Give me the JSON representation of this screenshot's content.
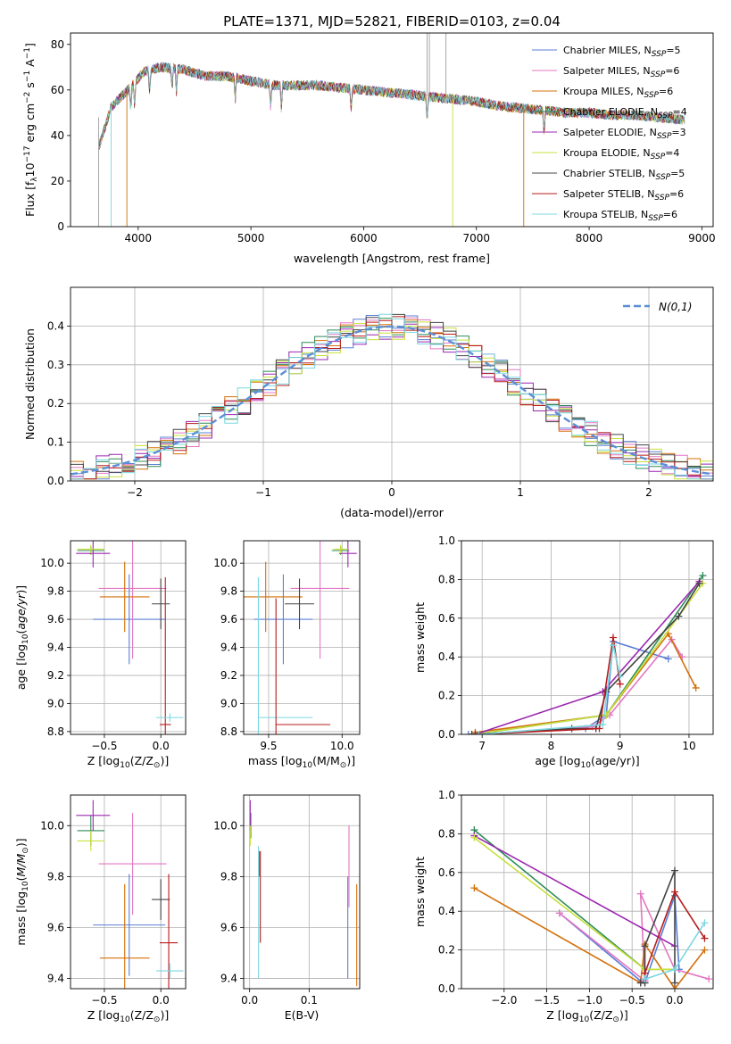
{
  "figure_title": "PLATE=1371, MJD=52821, FIBERID=0103, z=0.04",
  "series_colors": {
    "Chabrier MILES": "#5b7fd6",
    "Salpeter MILES": "#e377c2",
    "Kroupa MILES": "#d4700a",
    "Chabrier ELODIE": "#2e8b57",
    "Salpeter ELODIE": "#9b27b0",
    "Kroupa ELODIE": "#c8e03c",
    "Chabrier STELIB": "#444444",
    "Salpeter STELIB": "#b71c1c",
    "Kroupa STELIB": "#7ad7e0"
  },
  "chart_data": [
    {
      "id": "spectrum",
      "type": "line",
      "title": "PLATE=1371, MJD=52821, FIBERID=0103, z=0.04",
      "xlabel": "wavelength [Angstrom, rest frame]",
      "ylabel_parts": [
        "Flux [f",
        "λ",
        "10",
        "−17",
        " erg cm",
        "−2",
        " s",
        "−1",
        " A",
        "−1",
        "]"
      ],
      "xlim": [
        3400,
        9100
      ],
      "ylim": [
        0,
        85
      ],
      "xticks": [
        4000,
        5000,
        6000,
        7000,
        8000,
        9000
      ],
      "yticks": [
        0,
        20,
        40,
        60,
        80
      ],
      "legend_position": "upper-right",
      "legend": [
        {
          "label": "Chabrier MILES, N",
          "sub": "SSP",
          "val": "=5",
          "series": "Chabrier MILES"
        },
        {
          "label": "Salpeter MILES, N",
          "sub": "SSP",
          "val": "=6",
          "series": "Salpeter MILES"
        },
        {
          "label": "Kroupa MILES, N",
          "sub": "SSP",
          "val": "=6",
          "series": "Kroupa MILES"
        },
        {
          "label": "Chabrier ELODIE, N",
          "sub": "SSP",
          "val": "=4",
          "series": "Chabrier ELODIE"
        },
        {
          "label": "Salpeter ELODIE, N",
          "sub": "SSP",
          "val": "=3",
          "series": "Salpeter ELODIE"
        },
        {
          "label": "Kroupa ELODIE, N",
          "sub": "SSP",
          "val": "=4",
          "series": "Kroupa ELODIE"
        },
        {
          "label": "Chabrier STELIB, N",
          "sub": "SSP",
          "val": "=5",
          "series": "Chabrier STELIB"
        },
        {
          "label": "Salpeter STELIB, N",
          "sub": "SSP",
          "val": "=6",
          "series": "Salpeter STELIB"
        },
        {
          "label": "Kroupa STELIB, N",
          "sub": "SSP",
          "val": "=6",
          "series": "Kroupa STELIB"
        }
      ],
      "continuum": {
        "x": [
          3650,
          3750,
          3850,
          3950,
          4050,
          4200,
          4400,
          4600,
          4800,
          5000,
          5200,
          5400,
          5600,
          5800,
          6000,
          6200,
          6400,
          6600,
          6800,
          7000,
          7200,
          7400,
          7600,
          7800,
          8000,
          8200,
          8400,
          8600,
          8800
        ],
        "y": [
          48,
          52,
          57,
          62,
          68,
          70,
          69,
          66,
          66,
          64,
          62,
          62,
          62,
          61,
          60,
          59,
          58,
          57,
          56,
          55,
          53,
          52,
          51,
          50,
          50,
          49,
          49,
          48,
          47
        ]
      },
      "data_spikes": [
        {
          "x": 6563,
          "y": 85
        },
        {
          "x": 6583,
          "y": 85
        },
        {
          "x": 6730,
          "y": 85
        }
      ]
    },
    {
      "id": "residuals",
      "type": "histogram",
      "xlabel": "(data-model)/error",
      "ylabel": "Normed distribution",
      "xlim": [
        -2.5,
        2.5
      ],
      "ylim": [
        0,
        0.5
      ],
      "xticks": [
        -2,
        -1,
        0,
        1,
        2
      ],
      "yticks": [
        0.0,
        0.1,
        0.2,
        0.3,
        0.4
      ],
      "grid": true,
      "bin_width": 0.1,
      "legend_position": "upper-right",
      "reference_curve": {
        "label": "N(0,1)",
        "mean": 0,
        "sigma": 1
      }
    },
    {
      "id": "age-vs-z",
      "type": "errorbar",
      "xlabel_text": "Z [log",
      "xlabel_sub": "10",
      "xlabel_rest": "(Z/Z",
      "xlabel_sun": "⊙",
      "xlabel_end": ")]",
      "ylabel": "age  [log10(age/yr)]",
      "xlim": [
        -0.8,
        0.22
      ],
      "ylim": [
        8.78,
        10.16
      ],
      "xticks": [
        -0.5,
        0.0
      ],
      "yticks": [
        8.8,
        9.0,
        9.2,
        9.4,
        9.6,
        9.8,
        10.0
      ],
      "grid": true,
      "points": [
        {
          "series": "Chabrier MILES",
          "x": -0.28,
          "xerr": 0.32,
          "y": 9.6,
          "yerr": 0.32
        },
        {
          "series": "Salpeter MILES",
          "x": -0.25,
          "xerr": 0.3,
          "y": 9.82,
          "yerr": 0.5
        },
        {
          "series": "Kroupa MILES",
          "x": -0.32,
          "xerr": 0.22,
          "y": 9.76,
          "yerr": 0.25
        },
        {
          "series": "Chabrier ELODIE",
          "x": -0.62,
          "xerr": 0.12,
          "y": 10.09,
          "yerr": 0.03
        },
        {
          "series": "Salpeter ELODIE",
          "x": -0.6,
          "xerr": 0.15,
          "y": 10.07,
          "yerr": 0.1
        },
        {
          "series": "Kroupa ELODIE",
          "x": -0.62,
          "xerr": 0.12,
          "y": 10.1,
          "yerr": 0.03
        },
        {
          "series": "Chabrier STELIB",
          "x": 0.0,
          "xerr": 0.08,
          "y": 9.71,
          "yerr": 0.18
        },
        {
          "series": "Salpeter STELIB",
          "x": 0.04,
          "xerr": 0.05,
          "y": 8.85,
          "yerr": 1.05
        },
        {
          "series": "Kroupa STELIB",
          "x": 0.08,
          "xerr": 0.12,
          "y": 8.9,
          "yerr": 0.03
        }
      ]
    },
    {
      "id": "age-vs-mass",
      "type": "errorbar",
      "xlabel_text": "mass [log",
      "xlabel_sub": "10",
      "xlabel_rest": "(M/M",
      "xlabel_sun": "⊙",
      "xlabel_end": ")]",
      "xlim": [
        9.33,
        10.12
      ],
      "ylim": [
        8.78,
        10.16
      ],
      "xticks": [
        9.5,
        10.0
      ],
      "yticks": [
        8.8,
        9.0,
        9.2,
        9.4,
        9.6,
        9.8,
        10.0
      ],
      "grid": true,
      "points": [
        {
          "series": "Chabrier MILES",
          "x": 9.6,
          "xerr": 0.2,
          "y": 9.6,
          "yerr": 0.32
        },
        {
          "series": "Salpeter MILES",
          "x": 9.85,
          "xerr": 0.2,
          "y": 9.82,
          "yerr": 0.5
        },
        {
          "series": "Kroupa MILES",
          "x": 9.48,
          "xerr": 0.25,
          "y": 9.76,
          "yerr": 0.25
        },
        {
          "series": "Chabrier ELODIE",
          "x": 9.99,
          "xerr": 0.06,
          "y": 10.09,
          "yerr": 0.03
        },
        {
          "series": "Salpeter ELODIE",
          "x": 10.04,
          "xerr": 0.06,
          "y": 10.07,
          "yerr": 0.1
        },
        {
          "series": "Kroupa ELODIE",
          "x": 9.99,
          "xerr": 0.05,
          "y": 10.1,
          "yerr": 0.03
        },
        {
          "series": "Chabrier STELIB",
          "x": 9.71,
          "xerr": 0.1,
          "y": 9.71,
          "yerr": 0.18
        },
        {
          "series": "Salpeter STELIB",
          "x": 9.55,
          "xerr": 0.0,
          "y": 8.85,
          "yerr": 0.9
        },
        {
          "series": "Kroupa STELIB",
          "x": 9.43,
          "xerr": 0.0,
          "y": 8.9,
          "yerr": 1.0
        }
      ],
      "hlines": [
        {
          "series": "Salpeter STELIB",
          "x0": 9.55,
          "x1": 9.92,
          "y": 8.85
        },
        {
          "series": "Kroupa STELIB",
          "x0": 9.43,
          "x1": 9.8,
          "y": 8.9
        }
      ]
    },
    {
      "id": "mass-weight-vs-age",
      "type": "line",
      "xlabel_text": "age  [log",
      "xlabel_sub": "10",
      "xlabel_rest": "(age/yr)]",
      "ylabel": "mass weight",
      "xlim": [
        6.7,
        10.35
      ],
      "ylim": [
        0,
        1
      ],
      "xticks": [
        7,
        8,
        9,
        10
      ],
      "yticks": [
        0.0,
        0.2,
        0.4,
        0.6,
        0.8,
        1.0
      ],
      "grid": true,
      "series": [
        {
          "series": "Chabrier MILES",
          "x": [
            6.8,
            8.5,
            8.8,
            8.9,
            9.7
          ],
          "y": [
            0.0,
            0.03,
            0.1,
            0.48,
            0.39
          ]
        },
        {
          "series": "Salpeter MILES",
          "x": [
            6.9,
            8.6,
            8.85,
            9.75,
            9.9
          ],
          "y": [
            0.0,
            0.04,
            0.1,
            0.49,
            0.4
          ]
        },
        {
          "series": "Kroupa MILES",
          "x": [
            6.9,
            8.8,
            9.7,
            10.1
          ],
          "y": [
            0.01,
            0.1,
            0.52,
            0.24
          ]
        },
        {
          "series": "Chabrier ELODIE",
          "x": [
            6.9,
            8.8,
            10.2
          ],
          "y": [
            0.0,
            0.1,
            0.82
          ]
        },
        {
          "series": "Salpeter ELODIE",
          "x": [
            6.9,
            8.75,
            10.15
          ],
          "y": [
            0.0,
            0.22,
            0.79
          ]
        },
        {
          "series": "Kroupa ELODIE",
          "x": [
            6.9,
            8.8,
            10.2
          ],
          "y": [
            0.0,
            0.1,
            0.78
          ]
        },
        {
          "series": "Chabrier STELIB",
          "x": [
            6.85,
            8.3,
            8.65,
            8.8,
            9.85,
            10.15
          ],
          "y": [
            0.0,
            0.03,
            0.03,
            0.22,
            0.61,
            0.78
          ]
        },
        {
          "series": "Salpeter STELIB",
          "x": [
            6.9,
            8.7,
            8.9,
            9.0
          ],
          "y": [
            0.0,
            0.03,
            0.5,
            0.26
          ]
        },
        {
          "series": "Kroupa STELIB",
          "x": [
            6.95,
            8.75,
            8.9,
            9.0
          ],
          "y": [
            0.0,
            0.05,
            0.46,
            0.3
          ]
        }
      ]
    },
    {
      "id": "mass-vs-z",
      "type": "errorbar",
      "xlabel_text": "Z [log",
      "xlabel_sub": "10",
      "xlabel_rest": "(Z/Z",
      "xlabel_sun": "⊙",
      "xlabel_end": ")]",
      "ylabel": "mass [log10(M/M⊙)]",
      "xlim": [
        -0.8,
        0.22
      ],
      "ylim": [
        9.36,
        10.12
      ],
      "xticks": [
        -0.5,
        0.0
      ],
      "yticks": [
        9.4,
        9.6,
        9.8,
        10.0
      ],
      "grid": true,
      "points": [
        {
          "series": "Chabrier MILES",
          "x": -0.28,
          "xerr": 0.32,
          "y": 9.61,
          "yerr": 0.2
        },
        {
          "series": "Salpeter MILES",
          "x": -0.25,
          "xerr": 0.3,
          "y": 9.85,
          "yerr": 0.2
        },
        {
          "series": "Kroupa MILES",
          "x": -0.32,
          "xerr": 0.22,
          "y": 9.48,
          "yerr": 0.29
        },
        {
          "series": "Chabrier ELODIE",
          "x": -0.62,
          "xerr": 0.12,
          "y": 9.98,
          "yerr": 0.06
        },
        {
          "series": "Salpeter ELODIE",
          "x": -0.6,
          "xerr": 0.15,
          "y": 10.04,
          "yerr": 0.06
        },
        {
          "series": "Kroupa ELODIE",
          "x": -0.62,
          "xerr": 0.12,
          "y": 9.94,
          "yerr": 0.04
        },
        {
          "series": "Chabrier STELIB",
          "x": 0.0,
          "xerr": 0.08,
          "y": 9.71,
          "yerr": 0.08
        },
        {
          "series": "Salpeter STELIB",
          "x": 0.07,
          "xerr": 0.08,
          "y": 9.54,
          "yerr": 0.27
        },
        {
          "series": "Kroupa STELIB",
          "x": 0.08,
          "xerr": 0.12,
          "y": 9.43,
          "yerr": 0.03
        }
      ]
    },
    {
      "id": "mass-vs-ebv",
      "type": "errorbar",
      "xlabel": "E(B-V)",
      "xlim": [
        -0.01,
        0.185
      ],
      "ylim": [
        9.36,
        10.12
      ],
      "xticks": [
        0.0,
        0.1
      ],
      "yticks": [
        9.4,
        9.6,
        9.8,
        10.0
      ],
      "grid": true,
      "points": [
        {
          "series": "Chabrier MILES",
          "x": 0.165,
          "xerr": 0,
          "y": 9.6,
          "yerr": 0.2
        },
        {
          "series": "Salpeter MILES",
          "x": 0.167,
          "xerr": 0,
          "y": 9.84,
          "yerr": 0.16
        },
        {
          "series": "Kroupa MILES",
          "x": 0.18,
          "xerr": 0,
          "y": 9.57,
          "yerr": 0.2
        },
        {
          "series": "Chabrier ELODIE",
          "x": 0.002,
          "xerr": 0,
          "y": 10.0,
          "yerr": 0.05
        },
        {
          "series": "Salpeter ELODIE",
          "x": 0.001,
          "xerr": 0,
          "y": 10.04,
          "yerr": 0.06
        },
        {
          "series": "Kroupa ELODIE",
          "x": 0.001,
          "xerr": 0,
          "y": 9.96,
          "yerr": 0.04
        },
        {
          "series": "Chabrier STELIB",
          "x": 0.016,
          "xerr": 0,
          "y": 9.85,
          "yerr": 0.05
        },
        {
          "series": "Salpeter STELIB",
          "x": 0.018,
          "xerr": 0,
          "y": 9.72,
          "yerr": 0.18
        },
        {
          "series": "Kroupa STELIB",
          "x": 0.015,
          "xerr": 0,
          "y": 9.66,
          "yerr": 0.26
        }
      ]
    },
    {
      "id": "mass-weight-vs-z",
      "type": "line",
      "xlabel_text": "Z [log",
      "xlabel_sub": "10",
      "xlabel_rest": "(Z/Z",
      "xlabel_sun": "⊙",
      "xlabel_end": ")]",
      "ylabel": "mass weight",
      "xlim": [
        -2.5,
        0.45
      ],
      "ylim": [
        0,
        1
      ],
      "xticks": [
        -2.0,
        -1.5,
        -1.0,
        -0.5,
        0.0
      ],
      "yticks": [
        0.0,
        0.2,
        0.4,
        0.6,
        0.8,
        1.0
      ],
      "grid": true,
      "series": [
        {
          "series": "Chabrier MILES",
          "x": [
            -1.35,
            -0.4,
            -0.35,
            0.0,
            0.05
          ],
          "y": [
            0.39,
            0.04,
            0.03,
            0.48,
            0.1
          ]
        },
        {
          "series": "Salpeter MILES",
          "x": [
            -1.35,
            -0.35,
            -0.4,
            0.0,
            0.4
          ],
          "y": [
            0.39,
            0.04,
            0.49,
            0.1,
            0.05
          ]
        },
        {
          "series": "Kroupa MILES",
          "x": [
            -2.35,
            -0.4,
            -0.35,
            0.0,
            0.35
          ],
          "y": [
            0.52,
            0.03,
            0.23,
            0.0,
            0.2
          ]
        },
        {
          "series": "Chabrier ELODIE",
          "x": [
            -2.35,
            -0.35,
            0.0
          ],
          "y": [
            0.82,
            0.1,
            0.1
          ]
        },
        {
          "series": "Salpeter ELODIE",
          "x": [
            -2.35,
            0.0
          ],
          "y": [
            0.79,
            0.22
          ]
        },
        {
          "series": "Kroupa ELODIE",
          "x": [
            -2.35,
            -0.35,
            0.0
          ],
          "y": [
            0.78,
            0.1,
            0.1
          ]
        },
        {
          "series": "Chabrier STELIB",
          "x": [
            -0.4,
            -0.35,
            -0.35,
            0.0,
            0.0
          ],
          "y": [
            0.03,
            0.03,
            0.22,
            0.61,
            0.03
          ]
        },
        {
          "series": "Salpeter STELIB",
          "x": [
            -0.35,
            0.0,
            0.35
          ],
          "y": [
            0.08,
            0.5,
            0.26
          ]
        },
        {
          "series": "Kroupa STELIB",
          "x": [
            -0.35,
            0.0,
            0.35
          ],
          "y": [
            0.05,
            0.1,
            0.34
          ]
        }
      ]
    }
  ]
}
